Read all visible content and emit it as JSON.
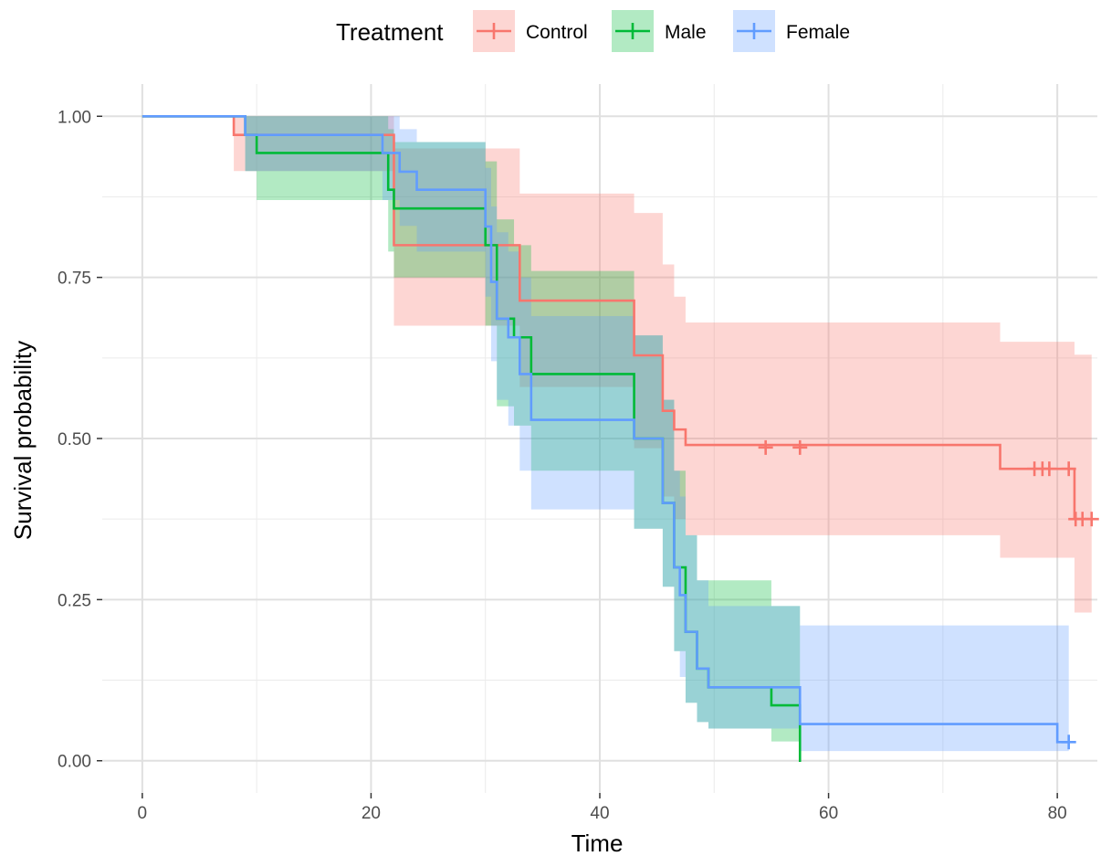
{
  "chart_data": {
    "type": "line",
    "subtype": "kaplan-meier step curves with confidence bands",
    "xlabel": "Time",
    "ylabel": "Survival probability",
    "xlim": [
      -3.5,
      83.5
    ],
    "ylim": [
      -0.05,
      1.05
    ],
    "xticks": [
      0,
      20,
      40,
      60,
      80
    ],
    "xtick_labels": [
      "0",
      "20",
      "40",
      "60",
      "80"
    ],
    "yticks": [
      0,
      0.25,
      0.5,
      0.75,
      1
    ],
    "ytick_labels": [
      "0.00",
      "0.25",
      "0.50",
      "0.75",
      "1.00"
    ],
    "grid": true,
    "legend": {
      "title": "Treatment",
      "position": "top",
      "entries": [
        "Control",
        "Male",
        "Female"
      ]
    },
    "series": [
      {
        "name": "Control",
        "color": "#F8766D",
        "fill": "#F8766D",
        "x": [
          0,
          8,
          9,
          22,
          30,
          33,
          43,
          45.5,
          46.5,
          47.5,
          75,
          81.5,
          83
        ],
        "y": [
          1.0,
          0.971,
          0.971,
          0.8,
          0.8,
          0.714,
          0.629,
          0.543,
          0.514,
          0.49,
          0.453,
          0.375,
          0.375
        ],
        "lower": [
          1.0,
          0.915,
          0.915,
          0.675,
          0.675,
          0.58,
          0.485,
          0.41,
          0.375,
          0.35,
          0.315,
          0.23,
          0.23
        ],
        "upper": [
          1.0,
          1.0,
          1.0,
          0.95,
          0.95,
          0.88,
          0.85,
          0.77,
          0.72,
          0.68,
          0.65,
          0.63,
          0.63
        ],
        "censored": [
          {
            "x": 54.5,
            "y": 0.486
          },
          {
            "x": 57.5,
            "y": 0.486
          },
          {
            "x": 78,
            "y": 0.453
          },
          {
            "x": 78.7,
            "y": 0.453
          },
          {
            "x": 79.3,
            "y": 0.453
          },
          {
            "x": 81,
            "y": 0.453
          },
          {
            "x": 81.6,
            "y": 0.375
          },
          {
            "x": 82.2,
            "y": 0.375
          },
          {
            "x": 83,
            "y": 0.375
          }
        ]
      },
      {
        "name": "Male",
        "color": "#00BA38",
        "fill": "#00BA38",
        "x": [
          0,
          9,
          10,
          21.5,
          22,
          30,
          31,
          32.5,
          34,
          43,
          45.5,
          46.5,
          47.5,
          48.5,
          49.5,
          55,
          57.5,
          57.6
        ],
        "y": [
          1.0,
          0.971,
          0.943,
          0.886,
          0.857,
          0.8,
          0.686,
          0.657,
          0.6,
          0.5,
          0.4,
          0.3,
          0.2,
          0.143,
          0.114,
          0.086,
          0.0,
          0.0
        ],
        "lower": [
          1.0,
          0.915,
          0.87,
          0.79,
          0.75,
          0.675,
          0.55,
          0.52,
          0.45,
          0.36,
          0.27,
          0.17,
          0.09,
          0.06,
          0.05,
          0.03,
          0.0,
          0.0
        ],
        "upper": [
          1.0,
          1.0,
          1.0,
          0.98,
          0.96,
          0.93,
          0.84,
          0.8,
          0.76,
          0.66,
          0.56,
          0.45,
          0.35,
          0.28,
          0.28,
          0.24,
          0.0,
          0.0
        ]
      },
      {
        "name": "Female",
        "color": "#619CFF",
        "fill": "#619CFF",
        "x": [
          0,
          9,
          21,
          22.5,
          24,
          30,
          30.5,
          31,
          32,
          33,
          34,
          43,
          45.5,
          46.5,
          47,
          47.5,
          48.5,
          49.5,
          57.5,
          80,
          81
        ],
        "y": [
          1.0,
          0.971,
          0.943,
          0.914,
          0.886,
          0.829,
          0.743,
          0.686,
          0.657,
          0.6,
          0.529,
          0.5,
          0.4,
          0.3,
          0.257,
          0.2,
          0.143,
          0.114,
          0.057,
          0.029,
          0.029
        ],
        "lower": [
          1.0,
          0.915,
          0.87,
          0.83,
          0.79,
          0.72,
          0.62,
          0.56,
          0.52,
          0.45,
          0.39,
          0.36,
          0.27,
          0.17,
          0.13,
          0.09,
          0.06,
          0.05,
          0.015,
          0.015,
          0.015
        ],
        "upper": [
          1.0,
          1.0,
          1.0,
          0.98,
          0.96,
          0.92,
          0.86,
          0.82,
          0.79,
          0.75,
          0.69,
          0.66,
          0.56,
          0.45,
          0.41,
          0.35,
          0.28,
          0.24,
          0.21,
          0.21,
          0.21
        ],
        "censored": [
          {
            "x": 81,
            "y": 0.029
          }
        ]
      }
    ]
  }
}
